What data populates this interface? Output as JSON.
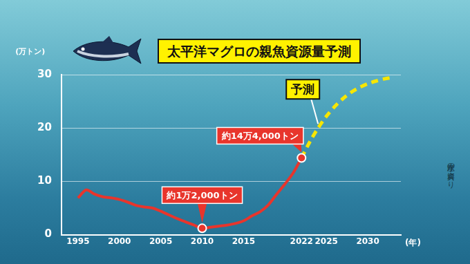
{
  "chart_data": {
    "type": "line",
    "title": "太平洋マグロの親魚資源量予測",
    "y_label": "(万トン)",
    "x_label": "(年)",
    "source": "水産庁の資料より",
    "series": [
      {
        "color": "#e8352c",
        "line_style": "solid",
        "marker": "circle",
        "x": [
          1995,
          1996,
          1997,
          1998,
          1999,
          2000,
          2001,
          2002,
          2003,
          2004,
          2005,
          2006,
          2007,
          2008,
          2009,
          2010,
          2011,
          2012,
          2013,
          2014,
          2015,
          2016,
          2017,
          2018,
          2019,
          2020,
          2021,
          2022
        ],
        "values": [
          6.9,
          8.4,
          7.6,
          7.1,
          6.9,
          6.6,
          6.1,
          5.5,
          5.2,
          5.0,
          4.4,
          3.7,
          3.0,
          2.4,
          1.8,
          1.2,
          1.4,
          1.6,
          1.8,
          2.1,
          2.6,
          3.5,
          4.3,
          5.6,
          7.6,
          9.5,
          11.6,
          14.4
        ]
      },
      {
        "color": "#f7e600",
        "line_style": "dashed",
        "x": [
          2022,
          2023,
          2024,
          2025,
          2026,
          2027,
          2028,
          2029,
          2030,
          2031,
          2032,
          2033
        ],
        "values": [
          14.4,
          17.4,
          20,
          22.2,
          24,
          25.5,
          26.7,
          27.6,
          28.3,
          28.8,
          29.2,
          29.5
        ]
      }
    ],
    "xlim": [
      1993,
      2034
    ],
    "xticks": [
      1995,
      2000,
      2005,
      2010,
      2015,
      2022,
      2025,
      2030
    ],
    "ylim": [
      0,
      30
    ],
    "yticks": [
      0,
      10,
      20,
      30
    ],
    "grid": true,
    "annotations": [
      {
        "text": "約1万2,000トン",
        "x": 2010,
        "y": 1.2
      },
      {
        "text": "約14万4,000トン",
        "x": 2022,
        "y": 14.4
      },
      {
        "text": "予測",
        "x": 2024,
        "y": 20
      }
    ]
  }
}
